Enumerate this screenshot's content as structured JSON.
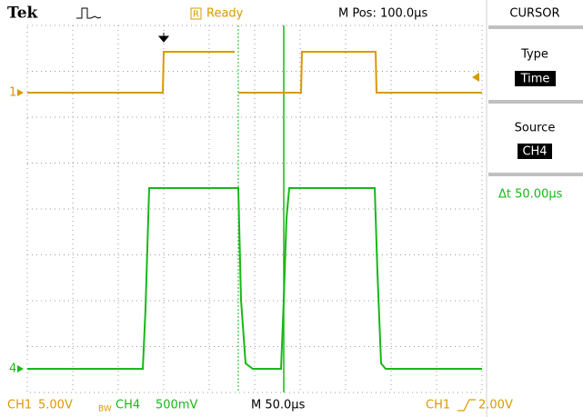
{
  "header": {
    "brand": "Tek",
    "status_icon": "R",
    "status": "Ready",
    "position": "M Pos: 100.0µs"
  },
  "menu": {
    "title": "CURSOR",
    "items": [
      {
        "label": "Type",
        "value": "Time"
      },
      {
        "label": "Source",
        "value": "CH4"
      }
    ],
    "readout": "Δt 50.00µs"
  },
  "channels": {
    "ch1_marker": "1",
    "ch4_marker": "4"
  },
  "footer": {
    "ch1": "CH1",
    "ch1_scale": "5.00V",
    "bw": "BW",
    "ch4": "CH4",
    "ch4_scale": "500mV",
    "timebase": "M 50.0µs",
    "trigger_source": "CH1",
    "trigger_level": "2.00V"
  }
}
